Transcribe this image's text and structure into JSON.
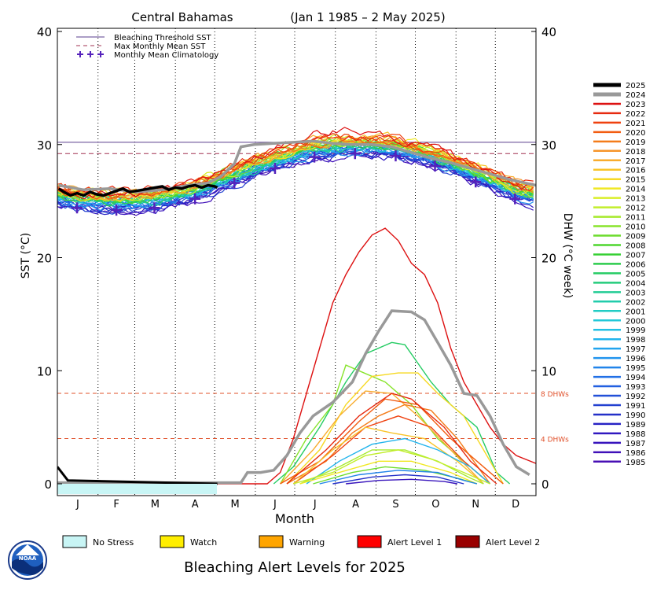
{
  "chart_data": {
    "type": "line",
    "title": "Central Bahamas",
    "date_range": "(Jan 1 1985 – 2 May 2025)",
    "xlabel": "Month",
    "ylabel_left": "SST (°C)",
    "ylabel_right": "DHW (°C week)",
    "months": [
      "J",
      "F",
      "M",
      "A",
      "M",
      "J",
      "J",
      "A",
      "S",
      "O",
      "N",
      "D"
    ],
    "y_ticks": [
      "0",
      "10",
      "20",
      "30",
      "40"
    ],
    "ylim": [
      0,
      40
    ],
    "bleaching_threshold_sst": 30.2,
    "max_monthly_mean_sst": 29.2,
    "dhw_lines": [
      {
        "value": 8,
        "label": "8 DHWs"
      },
      {
        "value": 4,
        "label": "4 DHWs"
      }
    ],
    "legend_top": [
      {
        "label": "Bleaching Threshold SST",
        "style": "solid",
        "color": "#5a3c8c"
      },
      {
        "label": "Max Monthly Mean SST",
        "style": "dashed",
        "color": "#a03050"
      },
      {
        "label": "Monthly Mean Climatology",
        "style": "plus",
        "color": "#5522bb"
      }
    ],
    "climatology": [
      24.4,
      24.2,
      24.4,
      25.2,
      26.6,
      27.9,
      28.9,
      29.2,
      29.0,
      28.1,
      26.7,
      25.2
    ],
    "years": [
      "2025",
      "2024",
      "2023",
      "2022",
      "2021",
      "2020",
      "2019",
      "2018",
      "2017",
      "2016",
      "2015",
      "2014",
      "2013",
      "2012",
      "2011",
      "2010",
      "2009",
      "2008",
      "2007",
      "2006",
      "2005",
      "2004",
      "2003",
      "2002",
      "2001",
      "2000",
      "1999",
      "1998",
      "1997",
      "1996",
      "1995",
      "1994",
      "1993",
      "1992",
      "1991",
      "1990",
      "1989",
      "1988",
      "1987",
      "1986",
      "1985"
    ],
    "year_colors": [
      "#000000",
      "#999999",
      "#dd1111",
      "#e62a0f",
      "#ef410f",
      "#f25c10",
      "#f47c1a",
      "#f6952a",
      "#f8ac2e",
      "#f8c42a",
      "#f6d924",
      "#f0e824",
      "#d9ee28",
      "#c2ee2c",
      "#a6ea2e",
      "#88e42c",
      "#6cdc2c",
      "#4ed62e",
      "#36d034",
      "#2ccc4c",
      "#26cc64",
      "#24cc7c",
      "#22cc94",
      "#22ccac",
      "#22ccc4",
      "#22c8d8",
      "#22c0e4",
      "#22b4ec",
      "#22a4ee",
      "#2294ee",
      "#2284ea",
      "#2270e6",
      "#2260e0",
      "#2250d8",
      "#2240d0",
      "#2430c8",
      "#2822c4",
      "#3018c0",
      "#3814bc",
      "#4010b8",
      "#4810b4"
    ],
    "sst_2025": [
      [
        1,
        26.1
      ],
      [
        5,
        25.8
      ],
      [
        10,
        25.5
      ],
      [
        15,
        25.7
      ],
      [
        20,
        25.5
      ],
      [
        25,
        25.8
      ],
      [
        30,
        25.6
      ],
      [
        35,
        25.5
      ],
      [
        40,
        25.7
      ],
      [
        45,
        25.9
      ],
      [
        50,
        26.1
      ],
      [
        55,
        25.8
      ],
      [
        60,
        25.9
      ],
      [
        65,
        26.0
      ],
      [
        70,
        26.1
      ],
      [
        75,
        26.2
      ],
      [
        80,
        26.3
      ],
      [
        85,
        26.0
      ],
      [
        90,
        26.2
      ],
      [
        95,
        26.1
      ],
      [
        100,
        26.3
      ],
      [
        105,
        26.4
      ],
      [
        110,
        26.2
      ],
      [
        115,
        26.4
      ],
      [
        120,
        26.3
      ],
      [
        122,
        26.2
      ]
    ],
    "sst_2024": [
      [
        1,
        26.4
      ],
      [
        20,
        26.0
      ],
      [
        40,
        26.1
      ],
      [
        60,
        25.8
      ],
      [
        80,
        26.0
      ],
      [
        100,
        26.4
      ],
      [
        115,
        26.6
      ],
      [
        125,
        27.2
      ],
      [
        135,
        28.3
      ],
      [
        140,
        29.8
      ],
      [
        150,
        30.0
      ],
      [
        165,
        30.1
      ],
      [
        180,
        30.2
      ],
      [
        195,
        30.3
      ],
      [
        210,
        30.1
      ],
      [
        225,
        30.0
      ],
      [
        240,
        30.0
      ],
      [
        255,
        29.8
      ],
      [
        270,
        29.3
      ],
      [
        285,
        28.8
      ],
      [
        300,
        28.4
      ],
      [
        315,
        27.9
      ],
      [
        330,
        27.4
      ],
      [
        345,
        26.9
      ],
      [
        365,
        26.4
      ]
    ],
    "dhw_2024": [
      [
        0,
        0.1
      ],
      [
        140,
        0.1
      ],
      [
        145,
        1.0
      ],
      [
        155,
        1.0
      ],
      [
        165,
        1.2
      ],
      [
        175,
        2.5
      ],
      [
        185,
        4.5
      ],
      [
        195,
        6.0
      ],
      [
        210,
        7.2
      ],
      [
        225,
        9.0
      ],
      [
        235,
        11.5
      ],
      [
        245,
        13.5
      ],
      [
        255,
        15.3
      ],
      [
        270,
        15.2
      ],
      [
        280,
        14.5
      ],
      [
        290,
        12.5
      ],
      [
        300,
        10.5
      ],
      [
        310,
        8.0
      ],
      [
        320,
        7.8
      ],
      [
        330,
        6.0
      ],
      [
        340,
        3.5
      ],
      [
        350,
        1.5
      ],
      [
        360,
        0.8
      ]
    ],
    "dhw_2023": [
      [
        0,
        0
      ],
      [
        160,
        0
      ],
      [
        170,
        1.0
      ],
      [
        180,
        4.0
      ],
      [
        190,
        8.0
      ],
      [
        200,
        12.0
      ],
      [
        210,
        16.0
      ],
      [
        220,
        18.5
      ],
      [
        230,
        20.5
      ],
      [
        240,
        22.0
      ],
      [
        250,
        22.6
      ],
      [
        260,
        21.5
      ],
      [
        270,
        19.5
      ],
      [
        280,
        18.5
      ],
      [
        290,
        16.0
      ],
      [
        300,
        12.0
      ],
      [
        310,
        9.0
      ],
      [
        320,
        7.0
      ],
      [
        330,
        5.0
      ],
      [
        340,
        3.5
      ],
      [
        350,
        2.5
      ],
      [
        365,
        1.8
      ]
    ],
    "dhw_2025": [
      [
        0,
        1.5
      ],
      [
        8,
        0.3
      ],
      [
        122,
        0
      ]
    ],
    "dhw_other": [
      {
        "year": "2005",
        "pts": [
          [
            165,
            0
          ],
          [
            180,
            1.5
          ],
          [
            200,
            5.0
          ],
          [
            220,
            9.0
          ],
          [
            235,
            11.5
          ],
          [
            255,
            12.5
          ],
          [
            265,
            12.3
          ],
          [
            285,
            9.0
          ],
          [
            300,
            7.0
          ],
          [
            320,
            5.0
          ],
          [
            335,
            1.0
          ],
          [
            345,
            0
          ]
        ]
      },
      {
        "year": "2010",
        "pts": [
          [
            170,
            0
          ],
          [
            190,
            4.0
          ],
          [
            210,
            7.0
          ],
          [
            220,
            10.5
          ],
          [
            230,
            10.0
          ],
          [
            250,
            9.0
          ],
          [
            270,
            7.0
          ],
          [
            290,
            4.0
          ],
          [
            310,
            2.0
          ],
          [
            330,
            0
          ]
        ]
      },
      {
        "year": "2015",
        "pts": [
          [
            175,
            0
          ],
          [
            200,
            3.0
          ],
          [
            220,
            7.0
          ],
          [
            240,
            9.5
          ],
          [
            260,
            9.8
          ],
          [
            275,
            9.8
          ],
          [
            290,
            8.0
          ],
          [
            310,
            6.0
          ],
          [
            325,
            3.0
          ],
          [
            340,
            0
          ]
        ]
      },
      {
        "year": "2017",
        "pts": [
          [
            170,
            0
          ],
          [
            195,
            3.0
          ],
          [
            215,
            6.0
          ],
          [
            235,
            8.2
          ],
          [
            255,
            8.0
          ],
          [
            275,
            6.0
          ],
          [
            300,
            3.0
          ],
          [
            325,
            0
          ]
        ]
      },
      {
        "year": "2019",
        "pts": [
          [
            175,
            0
          ],
          [
            205,
            2.0
          ],
          [
            225,
            4.5
          ],
          [
            245,
            6.0
          ],
          [
            265,
            7.0
          ],
          [
            285,
            6.5
          ],
          [
            305,
            4.0
          ],
          [
            330,
            0
          ]
        ]
      },
      {
        "year": "2020",
        "pts": [
          [
            170,
            0
          ],
          [
            200,
            2.0
          ],
          [
            230,
            5.5
          ],
          [
            250,
            7.5
          ],
          [
            275,
            7.0
          ],
          [
            300,
            4.0
          ],
          [
            320,
            2.0
          ],
          [
            340,
            0
          ]
        ]
      },
      {
        "year": "2021",
        "pts": [
          [
            180,
            0
          ],
          [
            210,
            2.5
          ],
          [
            235,
            5.0
          ],
          [
            260,
            6.0
          ],
          [
            285,
            5.0
          ],
          [
            310,
            2.0
          ],
          [
            330,
            0
          ]
        ]
      },
      {
        "year": "2022",
        "pts": [
          [
            175,
            0
          ],
          [
            205,
            3.0
          ],
          [
            230,
            6.0
          ],
          [
            255,
            8.0
          ],
          [
            270,
            7.5
          ],
          [
            295,
            5.0
          ],
          [
            315,
            2.0
          ],
          [
            335,
            0
          ]
        ]
      },
      {
        "year": "2016",
        "pts": [
          [
            180,
            0
          ],
          [
            210,
            3.0
          ],
          [
            235,
            5.0
          ],
          [
            255,
            4.5
          ],
          [
            280,
            4.0
          ],
          [
            305,
            2.0
          ],
          [
            325,
            0
          ]
        ]
      },
      {
        "year": "1998",
        "pts": [
          [
            190,
            0
          ],
          [
            215,
            2.0
          ],
          [
            240,
            3.5
          ],
          [
            265,
            4.0
          ],
          [
            290,
            3.0
          ],
          [
            315,
            1.5
          ],
          [
            330,
            0
          ]
        ]
      },
      {
        "year": "2011",
        "pts": [
          [
            185,
            0
          ],
          [
            215,
            1.5
          ],
          [
            240,
            3.0
          ],
          [
            265,
            3.0
          ],
          [
            290,
            2.0
          ],
          [
            315,
            0.5
          ],
          [
            325,
            0
          ]
        ]
      },
      {
        "year": "2012",
        "pts": [
          [
            180,
            0
          ],
          [
            210,
            1.0
          ],
          [
            235,
            2.5
          ],
          [
            260,
            3.0
          ],
          [
            285,
            2.2
          ],
          [
            310,
            1.0
          ],
          [
            330,
            0
          ]
        ]
      },
      {
        "year": "2014",
        "pts": [
          [
            185,
            0
          ],
          [
            215,
            1.0
          ],
          [
            245,
            2.0
          ],
          [
            270,
            2.0
          ],
          [
            300,
            1.0
          ],
          [
            320,
            0
          ]
        ]
      },
      {
        "year": "2009",
        "pts": [
          [
            195,
            0
          ],
          [
            225,
            1.0
          ],
          [
            250,
            1.5
          ],
          [
            280,
            1.2
          ],
          [
            305,
            0.5
          ],
          [
            320,
            0
          ]
        ]
      },
      {
        "year": "1995",
        "pts": [
          [
            200,
            0
          ],
          [
            230,
            0.8
          ],
          [
            260,
            1.2
          ],
          [
            290,
            1.0
          ],
          [
            310,
            0.3
          ],
          [
            320,
            0
          ]
        ]
      },
      {
        "year": "1990",
        "pts": [
          [
            210,
            0
          ],
          [
            240,
            0.6
          ],
          [
            265,
            0.8
          ],
          [
            290,
            0.6
          ],
          [
            310,
            0
          ]
        ]
      },
      {
        "year": "1987",
        "pts": [
          [
            220,
            0
          ],
          [
            245,
            0.3
          ],
          [
            270,
            0.4
          ],
          [
            295,
            0.2
          ],
          [
            305,
            0
          ]
        ]
      }
    ]
  },
  "alert_legend": {
    "title": "Bleaching Alert Levels for 2025",
    "items": [
      {
        "label": "No Stress",
        "color": "#c8f5f5"
      },
      {
        "label": "Watch",
        "color": "#ffee00"
      },
      {
        "label": "Warning",
        "color": "#ffa500"
      },
      {
        "label": "Alert Level 1",
        "color": "#ff0000"
      },
      {
        "label": "Alert Level 2",
        "color": "#990000"
      }
    ]
  },
  "logo": {
    "text": "NOAA",
    "icon": "noaa-logo-icon"
  }
}
